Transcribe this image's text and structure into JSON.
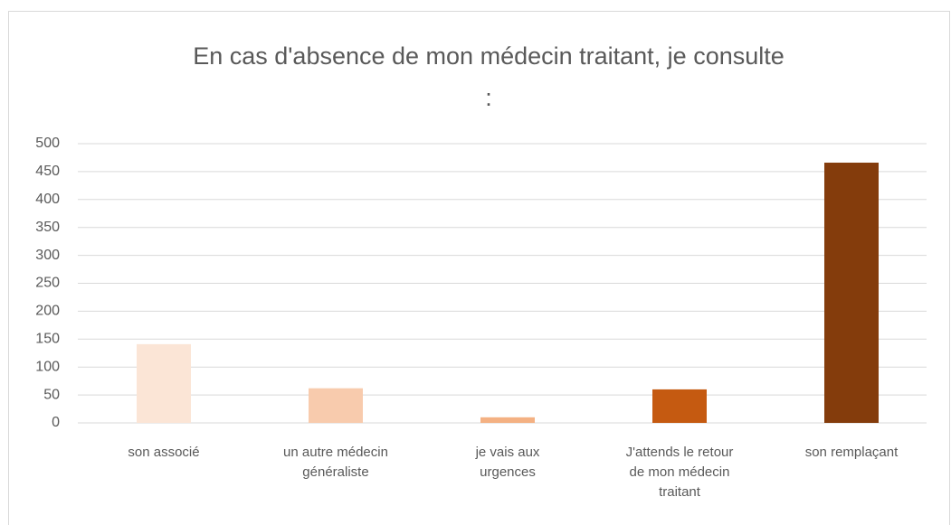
{
  "chart_data": {
    "type": "bar",
    "title": [
      "En cas d'absence de mon médecin traitant, je consulte",
      ":"
    ],
    "categories": [
      "son associé",
      "un autre médecin généraliste",
      "je vais aux urgences",
      "J'attends le retour de mon médecin traitant",
      "son remplaçant"
    ],
    "values": [
      141,
      62,
      10,
      60,
      466
    ],
    "colors": [
      "#fbe5d6",
      "#f8cbad",
      "#f4b183",
      "#c55a11",
      "#843c0c"
    ],
    "ylim": [
      0,
      500
    ],
    "yticks": [
      0,
      50,
      100,
      150,
      200,
      250,
      300,
      350,
      400,
      450,
      500
    ],
    "grid": true
  }
}
